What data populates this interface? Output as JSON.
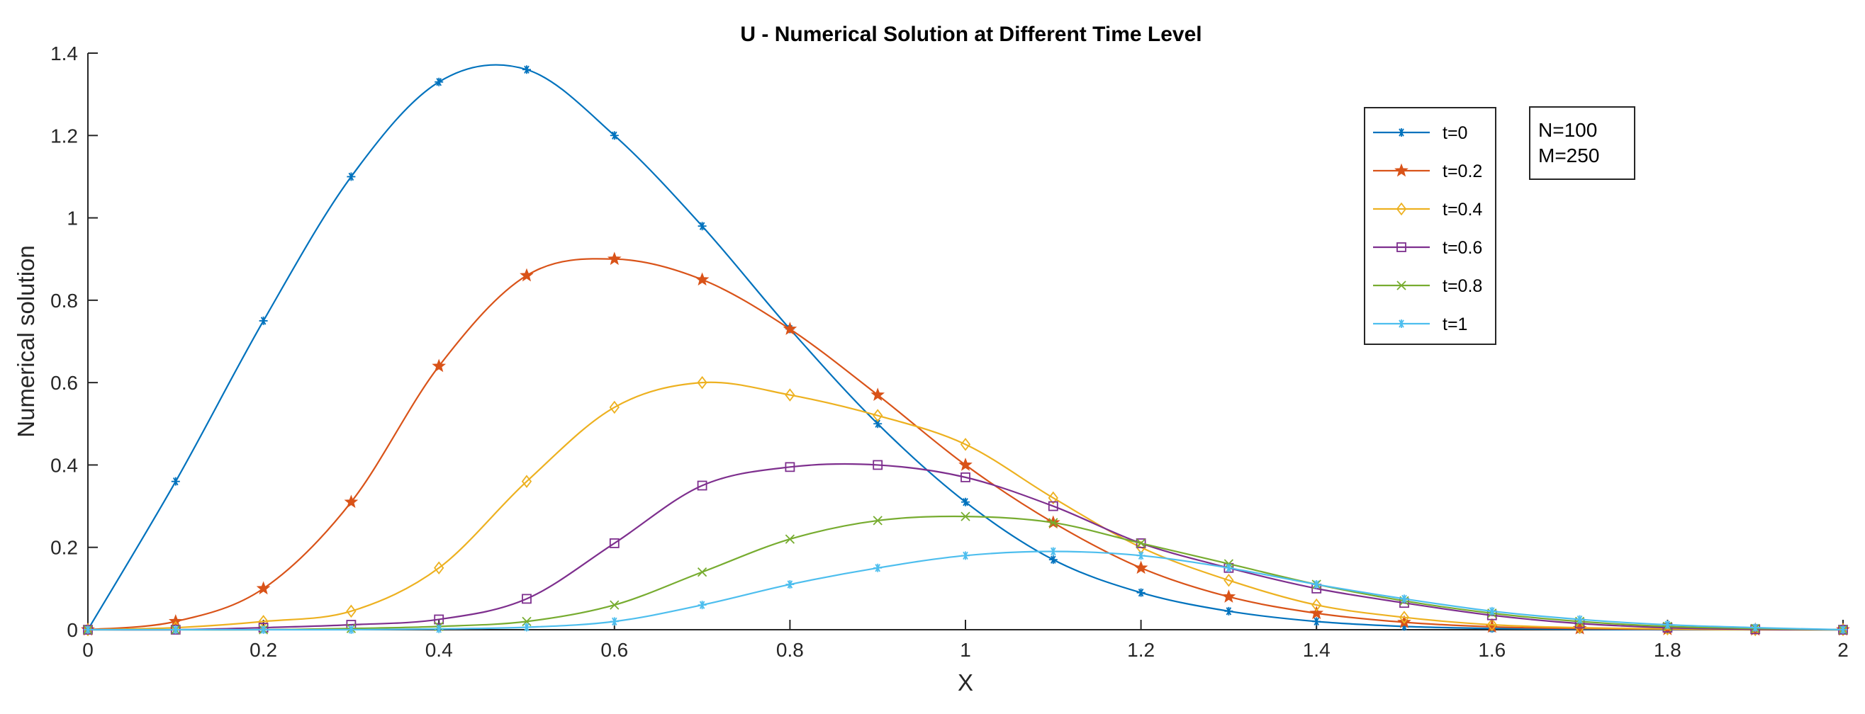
{
  "chart_data": {
    "type": "line",
    "title": "U - Numerical Solution at Different Time Level",
    "xlabel": "X",
    "ylabel": "Numerical solution",
    "xlim": [
      0,
      2
    ],
    "ylim": [
      0,
      1.4
    ],
    "xticks": [
      0,
      0.2,
      0.4,
      0.6,
      0.8,
      1,
      1.2,
      1.4,
      1.6,
      1.8,
      2
    ],
    "xtick_labels": [
      "0",
      "0.2",
      "0.4",
      "0.6",
      "0.8",
      "1",
      "1.2",
      "1.4",
      "1.6",
      "1.8",
      "2"
    ],
    "yticks": [
      0,
      0.2,
      0.4,
      0.6,
      0.8,
      1,
      1.2,
      1.4
    ],
    "ytick_labels": [
      "0",
      "0.2",
      "0.4",
      "0.6",
      "0.8",
      "1",
      "1.2",
      "1.4"
    ],
    "grid": false,
    "legend_position": "top-right",
    "annotation": [
      "N=100",
      "M=250"
    ],
    "x": [
      0,
      0.1,
      0.2,
      0.3,
      0.4,
      0.5,
      0.6,
      0.7,
      0.8,
      0.9,
      1.0,
      1.1,
      1.2,
      1.3,
      1.4,
      1.5,
      1.6,
      1.7,
      1.8,
      1.9,
      2.0
    ],
    "series": [
      {
        "name": "t=0",
        "color": "#0072BD",
        "marker": "asterisk",
        "values": [
          0,
          0.36,
          0.75,
          1.1,
          1.33,
          1.36,
          1.2,
          0.98,
          0.73,
          0.5,
          0.31,
          0.17,
          0.09,
          0.045,
          0.02,
          0.008,
          0.003,
          0.001,
          0,
          0,
          0
        ]
      },
      {
        "name": "t=0.2",
        "color": "#D95319",
        "marker": "pentagram",
        "values": [
          0,
          0.02,
          0.1,
          0.31,
          0.64,
          0.86,
          0.9,
          0.85,
          0.73,
          0.57,
          0.4,
          0.26,
          0.15,
          0.08,
          0.04,
          0.018,
          0.007,
          0.003,
          0.001,
          0,
          0
        ]
      },
      {
        "name": "t=0.4",
        "color": "#EDB120",
        "marker": "diamond",
        "values": [
          0,
          0.005,
          0.02,
          0.045,
          0.15,
          0.36,
          0.54,
          0.6,
          0.57,
          0.52,
          0.45,
          0.32,
          0.2,
          0.12,
          0.06,
          0.03,
          0.012,
          0.005,
          0.002,
          0,
          0
        ]
      },
      {
        "name": "t=0.6",
        "color": "#7E2F8E",
        "marker": "square",
        "values": [
          0,
          0,
          0.005,
          0.012,
          0.025,
          0.075,
          0.21,
          0.35,
          0.395,
          0.4,
          0.37,
          0.3,
          0.21,
          0.15,
          0.1,
          0.065,
          0.035,
          0.015,
          0.005,
          0.001,
          0
        ]
      },
      {
        "name": "t=0.8",
        "color": "#77AC30",
        "marker": "x",
        "values": [
          0,
          0,
          0,
          0.003,
          0.008,
          0.02,
          0.06,
          0.14,
          0.22,
          0.265,
          0.275,
          0.26,
          0.21,
          0.16,
          0.11,
          0.07,
          0.04,
          0.02,
          0.008,
          0.003,
          0
        ]
      },
      {
        "name": "t=1",
        "color": "#4DBEEE",
        "marker": "asterisk",
        "values": [
          0,
          0,
          0,
          0,
          0.002,
          0.006,
          0.02,
          0.06,
          0.11,
          0.15,
          0.18,
          0.19,
          0.18,
          0.15,
          0.11,
          0.075,
          0.045,
          0.025,
          0.012,
          0.005,
          0
        ]
      }
    ]
  }
}
